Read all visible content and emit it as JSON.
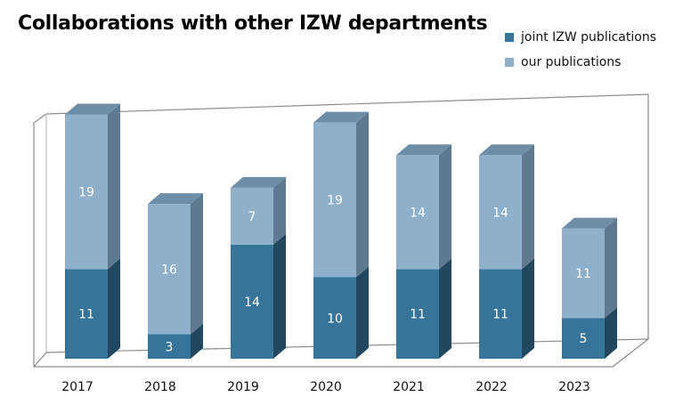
{
  "chart_data": {
    "type": "bar",
    "stacked": true,
    "three_d": true,
    "title": "Collaborations with other IZW departments",
    "categories": [
      "2017",
      "2018",
      "2019",
      "2020",
      "2021",
      "2022",
      "2023"
    ],
    "series": [
      {
        "name": "joint IZW publications",
        "values": [
          11,
          3,
          14,
          10,
          11,
          11,
          5
        ],
        "color": "#367499"
      },
      {
        "name": "our publications",
        "values": [
          19,
          16,
          7,
          19,
          14,
          14,
          11
        ],
        "color": "#8eb0cb"
      }
    ],
    "legend_position": "top-right",
    "grid": false
  }
}
